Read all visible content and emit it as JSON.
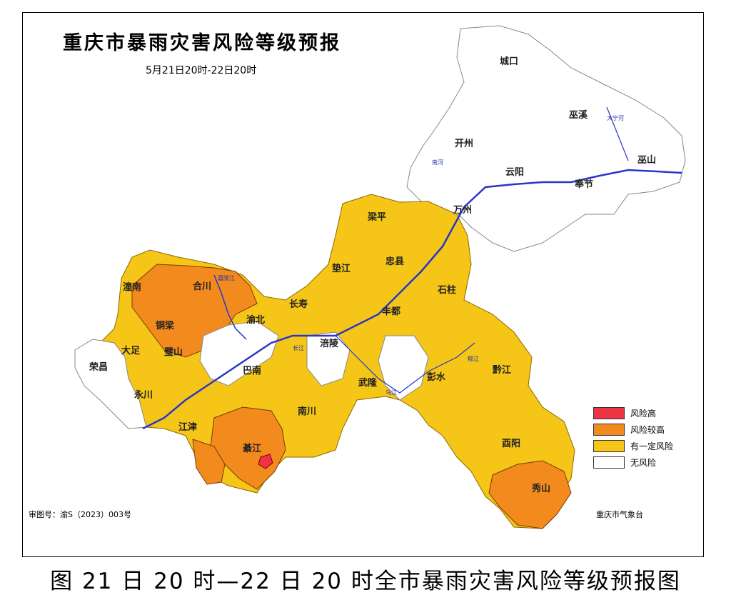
{
  "map": {
    "title": "重庆市暴雨灾害风险等级预报",
    "subtitle": "5月21日20时-22日20时",
    "approval_number": "审图号：渝S（2023）003号",
    "agency": "重庆市气象台",
    "caption": "图  21 日 20 时—22 日 20 时全市暴雨灾害风险等级预报图"
  },
  "legend": [
    {
      "label": "风险高",
      "color": "#ee3344"
    },
    {
      "label": "风险较高",
      "color": "#f28a1e"
    },
    {
      "label": "有一定风险",
      "color": "#f5c518"
    },
    {
      "label": "无风险",
      "color": "#ffffff"
    }
  ],
  "districts": [
    {
      "name": "城口",
      "risk": "无风险"
    },
    {
      "name": "巫溪",
      "risk": "无风险"
    },
    {
      "name": "开州",
      "risk": "无风险"
    },
    {
      "name": "巫山",
      "risk": "无风险"
    },
    {
      "name": "云阳",
      "risk": "无风险"
    },
    {
      "name": "奉节",
      "risk": "无风险"
    },
    {
      "name": "万州",
      "risk": "无风险"
    },
    {
      "name": "梁平",
      "risk": "有一定风险"
    },
    {
      "name": "忠县",
      "risk": "有一定风险"
    },
    {
      "name": "垫江",
      "risk": "有一定风险"
    },
    {
      "name": "石柱",
      "risk": "有一定风险"
    },
    {
      "name": "潼南",
      "risk": "风险较高"
    },
    {
      "name": "合川",
      "risk": "风险较高"
    },
    {
      "name": "长寿",
      "risk": "有一定风险"
    },
    {
      "name": "丰都",
      "risk": "有一定风险"
    },
    {
      "name": "铜梁",
      "risk": "风险较高"
    },
    {
      "name": "渝北",
      "risk": "有一定风险"
    },
    {
      "name": "涪陵",
      "risk": "有一定风险"
    },
    {
      "name": "大足",
      "risk": "有一定风险"
    },
    {
      "name": "璧山",
      "risk": "风险较高"
    },
    {
      "name": "荣昌",
      "risk": "无风险"
    },
    {
      "name": "巴南",
      "risk": "有一定风险"
    },
    {
      "name": "武隆",
      "risk": "有一定风险"
    },
    {
      "name": "彭水",
      "risk": "有一定风险"
    },
    {
      "name": "黔江",
      "risk": "有一定风险"
    },
    {
      "name": "永川",
      "risk": "无风险"
    },
    {
      "name": "南川",
      "risk": "有一定风险"
    },
    {
      "name": "江津",
      "risk": "有一定风险"
    },
    {
      "name": "綦江",
      "risk": "风险较高"
    },
    {
      "name": "酉阳",
      "risk": "有一定风险"
    },
    {
      "name": "秀山",
      "risk": "风险较高"
    }
  ],
  "rivers": [
    "大宁河",
    "南河",
    "嘉陵江",
    "乌江",
    "郁江",
    "长江"
  ]
}
